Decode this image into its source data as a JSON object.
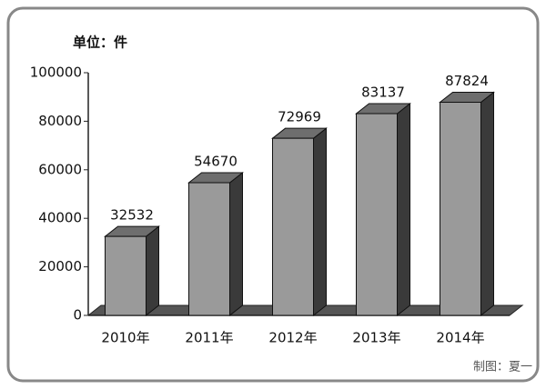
{
  "chart_data": {
    "type": "bar3d",
    "unit_label": "单位：件",
    "credit": "制图：夏一",
    "categories": [
      "2010年",
      "2011年",
      "2012年",
      "2013年",
      "2014年"
    ],
    "values": [
      32532,
      54670,
      72969,
      83137,
      87824
    ],
    "color": "#9a9a9a",
    "ylim": [
      0,
      100000
    ],
    "yticks": [
      0,
      20000,
      40000,
      60000,
      80000,
      100000
    ]
  }
}
